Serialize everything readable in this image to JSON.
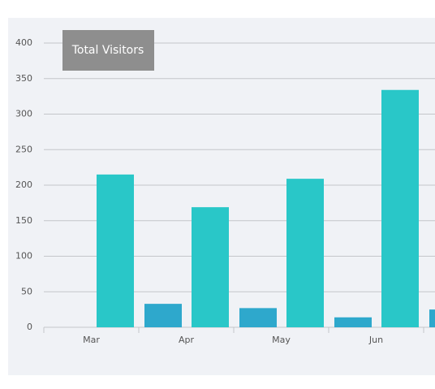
{
  "chart_data": {
    "type": "bar",
    "title": "Total Visitors",
    "categories": [
      "Mar",
      "Apr",
      "May",
      "Jun",
      null
    ],
    "series": [
      {
        "color": "#2ea8cc",
        "values": [
          0,
          33,
          27,
          14,
          25
        ]
      },
      {
        "color": "#29c7c8",
        "values": [
          215,
          169,
          209,
          334,
          null
        ]
      }
    ],
    "ylim": [
      0,
      400
    ],
    "yticks": [
      0,
      50,
      100,
      150,
      200,
      250,
      300,
      350,
      400
    ],
    "grid": true
  }
}
